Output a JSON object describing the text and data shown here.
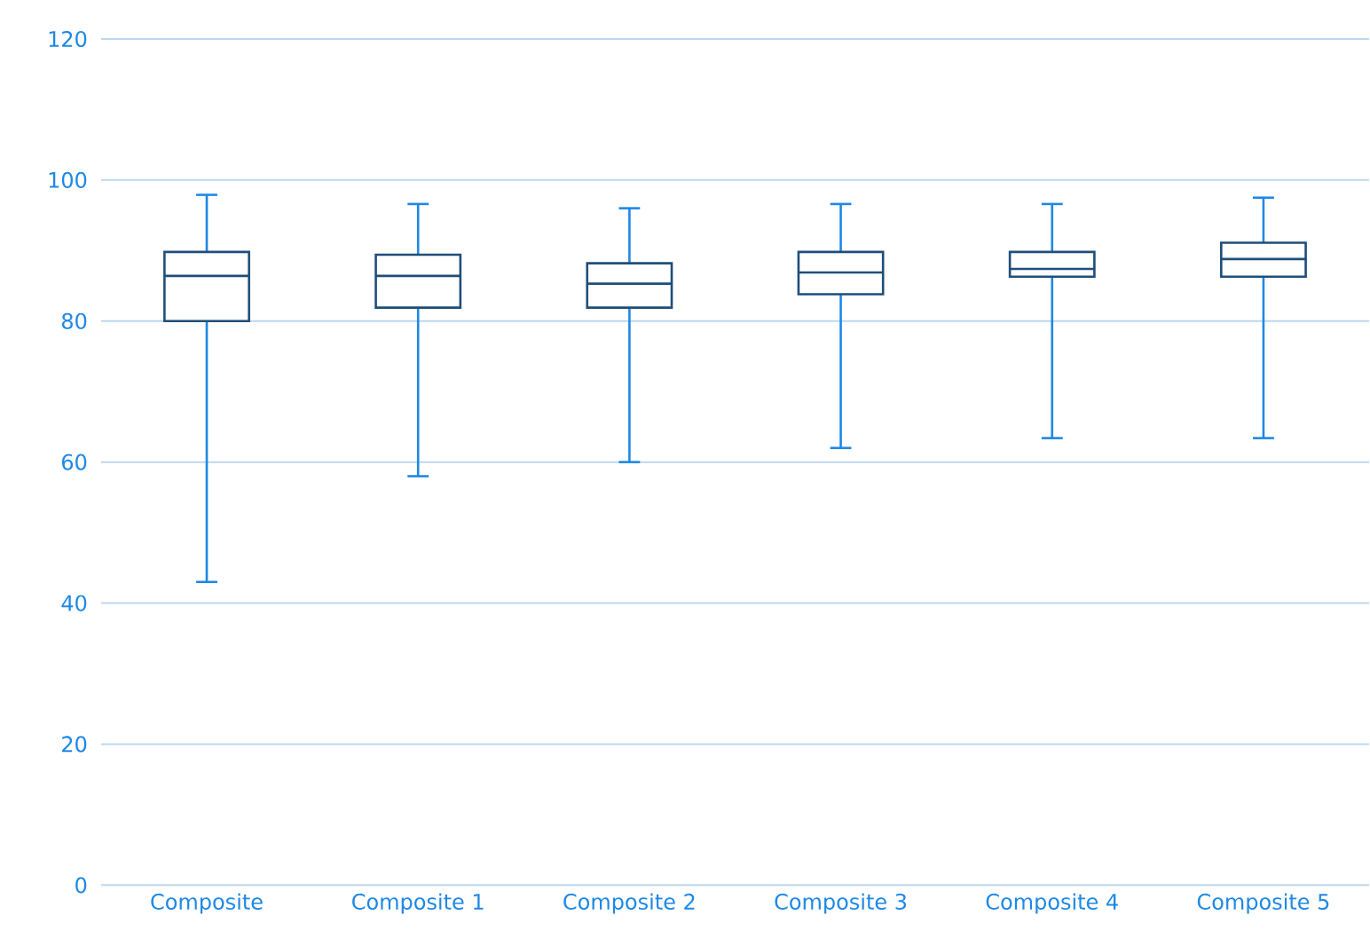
{
  "chart_data": {
    "type": "box",
    "categories": [
      "Composite",
      "Composite 1",
      "Composite 2",
      "Composite 3",
      "Composite 4",
      "Composite 5"
    ],
    "color": "#1f4e79",
    "boxes": [
      {
        "low": 43,
        "q1": 80,
        "median": 86.4,
        "q3": 89.8,
        "high": 97.9
      },
      {
        "low": 58,
        "q1": 81.9,
        "median": 86.4,
        "q3": 89.4,
        "high": 96.6
      },
      {
        "low": 60,
        "q1": 81.9,
        "median": 85.3,
        "q3": 88.2,
        "high": 96
      },
      {
        "low": 62,
        "q1": 83.8,
        "median": 86.9,
        "q3": 89.8,
        "high": 96.6
      },
      {
        "low": 63.4,
        "q1": 86.3,
        "median": 87.4,
        "q3": 89.8,
        "high": 96.6
      },
      {
        "low": 63.4,
        "q1": 86.3,
        "median": 88.8,
        "q3": 91.1,
        "high": 97.5
      }
    ],
    "ylim": [
      0,
      120
    ],
    "yticks": [
      0,
      20,
      40,
      60,
      80,
      100,
      120
    ],
    "grid": "y"
  }
}
